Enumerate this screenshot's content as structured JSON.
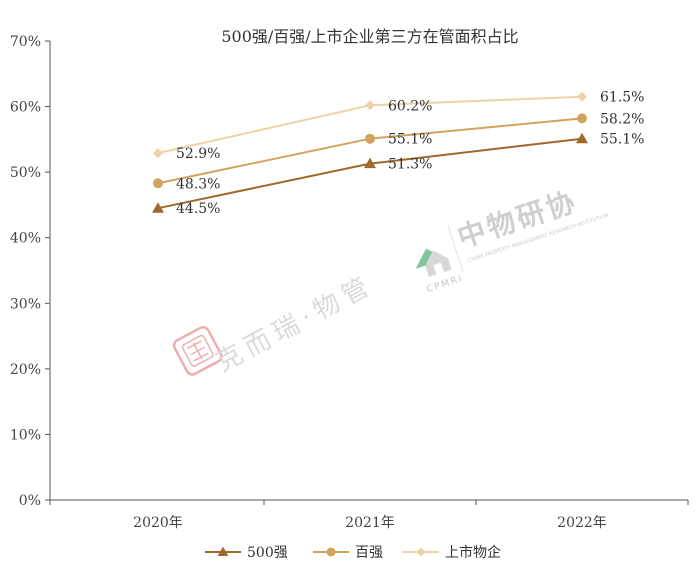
{
  "chart_data": {
    "type": "line",
    "title": "500强/百强/上市企业第三方在管面积占比",
    "categories": [
      "2020年",
      "2021年",
      "2022年"
    ],
    "ylim": [
      0,
      70
    ],
    "yticks": [
      "0%",
      "10%",
      "20%",
      "30%",
      "40%",
      "50%",
      "60%",
      "70%"
    ],
    "grid": false,
    "legend_position": "bottom",
    "series": [
      {
        "name": "500强",
        "values": [
          44.5,
          51.3,
          55.1
        ],
        "labels": [
          "44.5%",
          "51.3%",
          "55.1%"
        ],
        "color": "#a0692b",
        "marker": "triangle"
      },
      {
        "name": "百强",
        "values": [
          48.3,
          55.1,
          58.2
        ],
        "labels": [
          "48.3%",
          "55.1%",
          "58.2%"
        ],
        "color": "#d2a35c",
        "marker": "circle"
      },
      {
        "name": "上市物企",
        "values": [
          52.9,
          60.2,
          61.5
        ],
        "labels": [
          "52.9%",
          "60.2%",
          "61.5%"
        ],
        "color": "#ecd3a6",
        "marker": "diamond"
      }
    ]
  },
  "watermarks": {
    "left_text": "克而瑞·物管",
    "left_seal": "crm-seal-icon",
    "right_text": "中物研协",
    "right_sub": "CHINA PROPERTY MANAGEMENT RESEARCH INSTITUTION",
    "right_abbr": "CPMRI",
    "right_logo": "cpmri-logo-icon",
    "seal_color": "#e26d6d",
    "logo_green": "#2e9e5f",
    "logo_gray": "#bfbfbf"
  }
}
